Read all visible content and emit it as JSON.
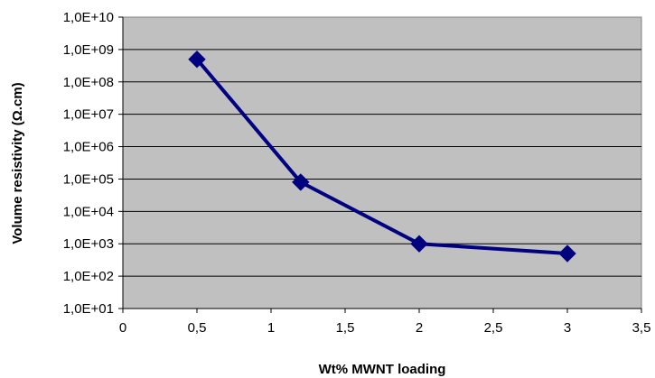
{
  "chart_data": {
    "type": "line",
    "title": "",
    "xlabel": "Wt% MWNT loading",
    "ylabel": "Volume resistivity (Ω.cm)",
    "xlim": [
      0,
      3.5
    ],
    "ylim": [
      10,
      10000000000
    ],
    "y_scale": "log",
    "x_ticks": [
      0,
      0.5,
      1,
      1.5,
      2,
      2.5,
      3,
      3.5
    ],
    "x_tick_labels": [
      "0",
      "0,5",
      "1",
      "1,5",
      "2",
      "2,5",
      "3",
      "3,5"
    ],
    "y_ticks": [
      10,
      100,
      1000,
      10000,
      100000,
      1000000,
      10000000,
      100000000,
      1000000000,
      10000000000
    ],
    "y_tick_labels": [
      "1,0E+01",
      "1,0E+02",
      "1,0E+03",
      "1,0E+04",
      "1,0E+05",
      "1,0E+06",
      "1,0E+07",
      "1,0E+08",
      "1,0E+09",
      "1,0E+10"
    ],
    "grid": "horizontal",
    "plot_background": "#c0c0c0",
    "series": [
      {
        "color": "#000080",
        "marker": "diamond",
        "x": [
          0.5,
          1.2,
          2,
          3
        ],
        "y": [
          500000000,
          80000,
          1000,
          500
        ]
      }
    ]
  }
}
